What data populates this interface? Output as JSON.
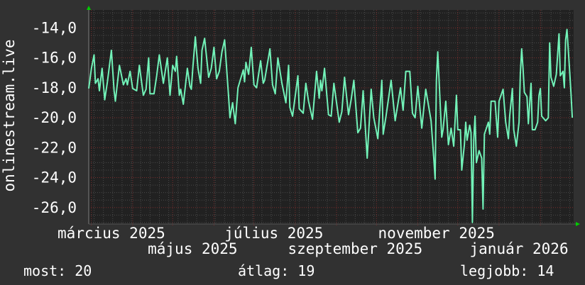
{
  "chart_data": {
    "type": "line",
    "ylabel": "onlinestream.live",
    "xlim": [
      "2025-02-27",
      "2026-02-26"
    ],
    "ylim": [
      -27.1,
      -12.8
    ],
    "yticks": [
      -14,
      -16,
      -18,
      -20,
      -22,
      -24,
      -26
    ],
    "ytick_labels": [
      "-14,0",
      "-16,0",
      "-18,0",
      "-20,0",
      "-22,0",
      "-24,0",
      "-26,0"
    ],
    "xtick_labels": [
      {
        "date": "2025-03-16",
        "label": "március 2025"
      },
      {
        "date": "2025-05-16",
        "label": "május 2025"
      },
      {
        "date": "2025-07-16",
        "label": "július 2025"
      },
      {
        "date": "2025-09-15",
        "label": "szeptember 2025"
      },
      {
        "date": "2025-11-15",
        "label": "november 2025"
      },
      {
        "date": "2026-01-16",
        "label": "január 2026"
      }
    ],
    "grid": true,
    "colors": {
      "background": "#313131",
      "plot": "#212121",
      "line": "#72f2b8",
      "major_grid": "#7a2e2e",
      "minor_grid": "#4a4a4a",
      "arrow": "#00cc00"
    },
    "x": [
      "2025-02-27",
      "2025-03-01",
      "2025-03-03",
      "2025-03-04",
      "2025-03-06",
      "2025-03-07",
      "2025-03-09",
      "2025-03-11",
      "2025-03-13",
      "2025-03-16",
      "2025-03-18",
      "2025-03-19",
      "2025-03-22",
      "2025-03-25",
      "2025-03-27",
      "2025-03-28",
      "2025-03-30",
      "2025-04-01",
      "2025-04-04",
      "2025-04-06",
      "2025-04-09",
      "2025-04-11",
      "2025-04-13",
      "2025-04-14",
      "2025-04-17",
      "2025-04-19",
      "2025-04-21",
      "2025-04-24",
      "2025-04-27",
      "2025-04-29",
      "2025-05-01",
      "2025-05-03",
      "2025-05-04",
      "2025-05-06",
      "2025-05-07",
      "2025-05-09",
      "2025-05-12",
      "2025-05-14",
      "2025-05-15",
      "2025-05-16",
      "2025-05-18",
      "2025-05-20",
      "2025-05-22",
      "2025-05-23",
      "2025-05-25",
      "2025-05-28",
      "2025-05-30",
      "2025-06-01",
      "2025-06-03",
      "2025-06-05",
      "2025-06-07",
      "2025-06-09",
      "2025-06-12",
      "2025-06-13",
      "2025-06-15",
      "2025-06-17",
      "2025-06-19",
      "2025-06-23",
      "2025-06-24",
      "2025-06-25",
      "2025-06-27",
      "2025-06-29",
      "2025-07-01",
      "2025-07-03",
      "2025-07-06",
      "2025-07-08",
      "2025-07-09",
      "2025-07-13",
      "2025-07-15",
      "2025-07-17",
      "2025-07-19",
      "2025-07-22",
      "2025-07-25",
      "2025-07-27",
      "2025-07-28",
      "2025-07-30",
      "2025-08-03",
      "2025-08-04",
      "2025-08-07",
      "2025-08-09",
      "2025-08-11",
      "2025-08-14",
      "2025-08-17",
      "2025-08-19",
      "2025-08-20",
      "2025-08-21",
      "2025-08-23",
      "2025-08-26",
      "2025-08-28",
      "2025-08-30",
      "2025-09-03",
      "2025-09-05",
      "2025-09-07",
      "2025-09-10",
      "2025-09-12",
      "2025-09-14",
      "2025-09-17",
      "2025-09-19",
      "2025-09-21",
      "2025-09-24",
      "2025-09-27",
      "2025-09-29",
      "2025-10-02",
      "2025-10-05",
      "2025-10-06",
      "2025-10-08",
      "2025-10-12",
      "2025-10-15",
      "2025-10-19",
      "2025-10-21",
      "2025-10-23",
      "2025-10-26",
      "2025-10-28",
      "2025-10-30",
      "2025-11-01",
      "2025-11-04",
      "2025-11-07",
      "2025-11-11",
      "2025-11-13",
      "2025-11-14",
      "2025-11-15",
      "2025-11-16",
      "2025-11-19",
      "2025-11-20",
      "2025-11-22",
      "2025-11-24",
      "2025-11-26",
      "2025-11-28",
      "2025-11-30",
      "2025-12-01",
      "2025-12-03",
      "2025-12-04",
      "2025-12-06",
      "2025-12-07",
      "2025-12-08",
      "2025-12-10",
      "2025-12-11",
      "2025-12-12",
      "2025-12-13",
      "2025-12-14",
      "2025-12-15",
      "2025-12-17",
      "2025-12-19",
      "2025-12-20",
      "2025-12-21",
      "2025-12-24",
      "2025-12-25",
      "2025-12-26",
      "2025-12-29",
      "2025-12-31",
      "2026-01-01",
      "2026-01-04",
      "2026-01-06",
      "2026-01-08",
      "2026-01-09",
      "2026-01-11",
      "2026-01-12",
      "2026-01-14",
      "2026-01-16",
      "2026-01-17",
      "2026-01-18",
      "2026-01-19",
      "2026-01-20",
      "2026-01-22",
      "2026-01-23",
      "2026-01-25",
      "2026-01-26",
      "2026-01-28",
      "2026-01-30",
      "2026-01-31",
      "2026-02-01",
      "2026-02-02",
      "2026-02-05",
      "2026-02-07",
      "2026-02-08",
      "2026-02-09",
      "2026-02-11",
      "2026-02-13",
      "2026-02-15",
      "2026-02-16",
      "2026-02-18",
      "2026-02-19",
      "2026-02-20",
      "2026-02-21",
      "2026-02-23",
      "2026-02-24",
      "2026-02-25"
    ],
    "y": [
      -18.05,
      -16.7,
      -15.8,
      -17.7,
      -17.4,
      -18.2,
      -16.7,
      -18.8,
      -17.6,
      -15.5,
      -18.2,
      -18.9,
      -16.5,
      -17.8,
      -17.4,
      -17.8,
      -16.9,
      -18.05,
      -18.2,
      -16.5,
      -18.5,
      -18.1,
      -16.0,
      -18.4,
      -18.4,
      -17.2,
      -15.8,
      -17.7,
      -16.0,
      -18.5,
      -16.5,
      -16.9,
      -15.9,
      -18.5,
      -18.1,
      -19.1,
      -16.7,
      -17.9,
      -18.1,
      -16.8,
      -14.6,
      -16.7,
      -17.7,
      -15.5,
      -14.7,
      -17.3,
      -16.7,
      -15.3,
      -17.4,
      -16.9,
      -15.6,
      -14.8,
      -18.6,
      -20.0,
      -19.0,
      -20.4,
      -18.0,
      -16.8,
      -17.6,
      -16.3,
      -17.1,
      -15.3,
      -17.8,
      -18.0,
      -16.2,
      -17.7,
      -17.5,
      -15.4,
      -17.8,
      -18.4,
      -16.0,
      -17.7,
      -19.0,
      -16.5,
      -19.3,
      -19.9,
      -17.2,
      -19.4,
      -19.7,
      -17.7,
      -18.9,
      -20.1,
      -16.9,
      -18.7,
      -17.5,
      -18.2,
      -16.7,
      -19.8,
      -19.9,
      -17.7,
      -20.3,
      -19.6,
      -17.3,
      -19.8,
      -18.8,
      -17.5,
      -21.0,
      -20.7,
      -18.2,
      -22.7,
      -18.1,
      -20.0,
      -21.4,
      -17.5,
      -21.1,
      -20.0,
      -17.5,
      -20.2,
      -18.0,
      -19.5,
      -16.9,
      -16.9,
      -19.7,
      -20.0,
      -17.9,
      -20.7,
      -18.1,
      -20.2,
      -22.7,
      -24.1,
      -17.5,
      -15.6,
      -21.3,
      -20.8,
      -18.9,
      -21.8,
      -20.7,
      -21.9,
      -18.5,
      -20.8,
      -20.8,
      -23.5,
      -21.8,
      -20.3,
      -21.5,
      -20.5,
      -21.0,
      -27.0,
      -21.5,
      -19.9,
      -23.0,
      -22.2,
      -22.7,
      -26.1,
      -21.1,
      -20.3,
      -21.1,
      -18.9,
      -18.9,
      -21.3,
      -18.9,
      -18.1,
      -20.3,
      -21.4,
      -19.9,
      -18.05,
      -20.8,
      -21.9,
      -20.3,
      -17.1,
      -15.4,
      -16.7,
      -18.3,
      -18.6,
      -20.4,
      -17.7,
      -20.8,
      -20.8,
      -20.3,
      -18.5,
      -18.05,
      -19.9,
      -20.2,
      -20.0,
      -15.0,
      -17.3,
      -17.9,
      -17.1,
      -14.4,
      -17.2,
      -16.9,
      -18.0,
      -14.8,
      -14.1,
      -16.9,
      -18.3,
      -20.0
    ]
  },
  "legend": {
    "current": "most: 20",
    "average": "átlag: 19",
    "max": "legjobb: 14"
  }
}
